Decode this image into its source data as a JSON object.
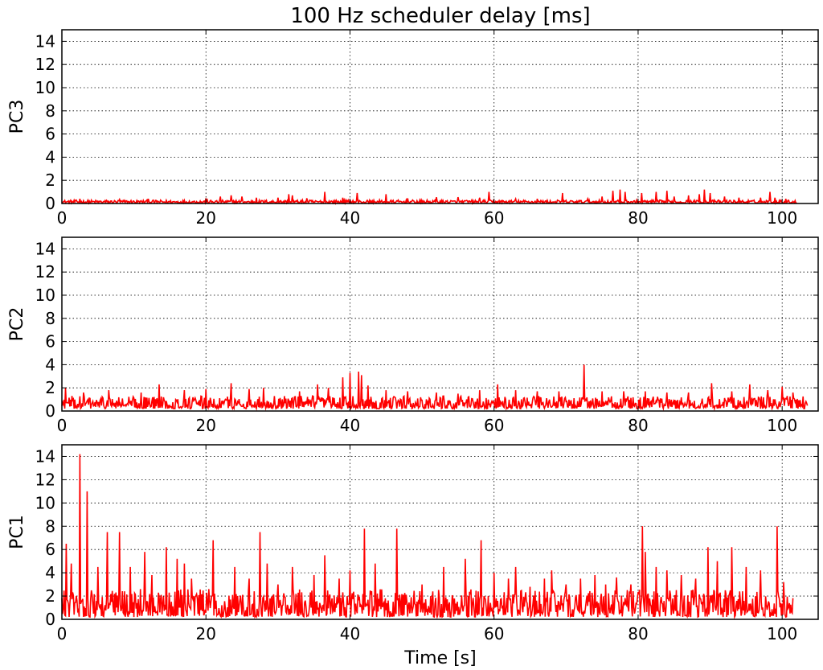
{
  "title": "100 Hz scheduler delay [ms]",
  "colors": {
    "series": "#ff0000",
    "grid": "#000000",
    "axes": "#000000",
    "background": "#ffffff"
  },
  "chart_data": [
    {
      "type": "line",
      "panel": "top",
      "ylabel": "PC3",
      "xlabel": "",
      "xlim": [
        0,
        105
      ],
      "ylim": [
        0,
        15
      ],
      "xticks": [
        0,
        20,
        40,
        60,
        80,
        100
      ],
      "yticks": [
        0,
        2,
        4,
        6,
        8,
        10,
        12,
        14
      ],
      "grid": true,
      "series": [
        {
          "x_end": 102,
          "baseline": [
            0.05,
            0.3
          ],
          "spikes": [
            [
              2.5,
              0.4
            ],
            [
              8,
              0.35
            ],
            [
              12,
              0.4
            ],
            [
              20,
              0.45
            ],
            [
              22,
              0.6
            ],
            [
              23.5,
              0.7
            ],
            [
              25,
              0.6
            ],
            [
              27,
              0.5
            ],
            [
              30,
              0.5
            ],
            [
              31.5,
              0.8
            ],
            [
              32,
              0.7
            ],
            [
              34,
              0.45
            ],
            [
              36.5,
              1.0
            ],
            [
              39,
              0.5
            ],
            [
              41,
              0.9
            ],
            [
              45,
              0.8
            ],
            [
              48,
              0.45
            ],
            [
              52,
              0.55
            ],
            [
              55,
              0.55
            ],
            [
              58,
              0.5
            ],
            [
              59.3,
              1.0
            ],
            [
              63,
              0.4
            ],
            [
              66,
              0.4
            ],
            [
              69.5,
              0.9
            ],
            [
              73,
              0.4
            ],
            [
              75,
              0.6
            ],
            [
              76.5,
              1.1
            ],
            [
              77.5,
              1.2
            ],
            [
              78.2,
              1.0
            ],
            [
              80.5,
              0.9
            ],
            [
              82.5,
              1.0
            ],
            [
              84,
              1.1
            ],
            [
              85,
              0.6
            ],
            [
              87,
              0.7
            ],
            [
              88.5,
              0.8
            ],
            [
              89.2,
              1.2
            ],
            [
              90,
              0.9
            ],
            [
              92,
              0.6
            ],
            [
              94,
              0.5
            ],
            [
              97,
              0.5
            ],
            [
              98.3,
              1.0
            ],
            [
              99,
              0.5
            ],
            [
              100.5,
              0.4
            ]
          ]
        }
      ]
    },
    {
      "type": "line",
      "panel": "middle",
      "ylabel": "PC2",
      "xlabel": "",
      "xlim": [
        0,
        105
      ],
      "ylim": [
        0,
        15
      ],
      "xticks": [
        0,
        20,
        40,
        60,
        80,
        100
      ],
      "yticks": [
        0,
        2,
        4,
        6,
        8,
        10,
        12,
        14
      ],
      "grid": true,
      "series": [
        {
          "x_end": 103.5,
          "baseline": [
            0.2,
            1.3
          ],
          "spikes": [
            [
              0.5,
              2.0
            ],
            [
              3,
              1.6
            ],
            [
              6.5,
              1.8
            ],
            [
              11,
              1.6
            ],
            [
              13.5,
              2.3
            ],
            [
              17,
              1.8
            ],
            [
              20,
              1.9
            ],
            [
              23.5,
              2.4
            ],
            [
              26,
              1.9
            ],
            [
              28,
              2.0
            ],
            [
              33,
              1.7
            ],
            [
              35.5,
              2.3
            ],
            [
              37,
              2.0
            ],
            [
              39,
              2.9
            ],
            [
              40,
              3.3
            ],
            [
              41.2,
              3.4
            ],
            [
              41.6,
              3.1
            ],
            [
              42.5,
              2.2
            ],
            [
              45,
              1.8
            ],
            [
              48,
              1.7
            ],
            [
              52,
              1.6
            ],
            [
              55,
              1.5
            ],
            [
              58,
              1.8
            ],
            [
              60.5,
              2.3
            ],
            [
              63,
              1.8
            ],
            [
              66,
              1.7
            ],
            [
              69,
              1.7
            ],
            [
              72.5,
              4.0
            ],
            [
              75,
              1.7
            ],
            [
              78,
              1.7
            ],
            [
              81,
              1.7
            ],
            [
              84,
              1.6
            ],
            [
              87,
              1.6
            ],
            [
              90.2,
              2.4
            ],
            [
              93,
              1.7
            ],
            [
              95.5,
              2.3
            ],
            [
              98,
              1.8
            ],
            [
              100,
              2.1
            ],
            [
              101.5,
              1.6
            ]
          ]
        }
      ]
    },
    {
      "type": "line",
      "panel": "bottom",
      "ylabel": "PC1",
      "xlabel": "Time [s]",
      "xlim": [
        0,
        105
      ],
      "ylim": [
        0,
        15
      ],
      "xticks": [
        0,
        20,
        40,
        60,
        80,
        100
      ],
      "yticks": [
        0,
        2,
        4,
        6,
        8,
        10,
        12,
        14
      ],
      "grid": true,
      "series": [
        {
          "x_end": 101.5,
          "baseline": [
            0.2,
            2.6
          ],
          "spikes": [
            [
              0.6,
              6.5
            ],
            [
              1.3,
              4.8
            ],
            [
              2.5,
              14.2
            ],
            [
              3.5,
              11.0
            ],
            [
              5,
              4.5
            ],
            [
              6.3,
              7.5
            ],
            [
              8,
              7.5
            ],
            [
              9.5,
              4.5
            ],
            [
              11.5,
              5.8
            ],
            [
              12.5,
              3.8
            ],
            [
              14.5,
              6.2
            ],
            [
              16,
              5.2
            ],
            [
              17,
              4.8
            ],
            [
              18,
              3.5
            ],
            [
              21,
              6.8
            ],
            [
              24,
              4.5
            ],
            [
              26,
              3.5
            ],
            [
              27.5,
              7.5
            ],
            [
              28.5,
              4.8
            ],
            [
              30,
              3.0
            ],
            [
              32,
              4.5
            ],
            [
              35,
              3.8
            ],
            [
              36.5,
              5.5
            ],
            [
              38.5,
              3.5
            ],
            [
              40,
              4.2
            ],
            [
              42,
              7.8
            ],
            [
              43.5,
              4.8
            ],
            [
              46.5,
              7.8
            ],
            [
              50,
              3.0
            ],
            [
              53,
              4.5
            ],
            [
              56,
              5.2
            ],
            [
              58.2,
              6.8
            ],
            [
              60,
              4.0
            ],
            [
              62,
              3.5
            ],
            [
              63,
              4.5
            ],
            [
              65,
              2.8
            ],
            [
              67,
              3.5
            ],
            [
              68,
              4.2
            ],
            [
              70,
              3.0
            ],
            [
              72,
              3.5
            ],
            [
              74,
              3.8
            ],
            [
              75.5,
              3.0
            ],
            [
              77,
              3.6
            ],
            [
              79,
              3.0
            ],
            [
              80.6,
              8.0
            ],
            [
              81,
              5.8
            ],
            [
              82.5,
              4.5
            ],
            [
              84,
              4.2
            ],
            [
              86,
              3.8
            ],
            [
              88,
              3.5
            ],
            [
              89.7,
              6.2
            ],
            [
              91,
              5.0
            ],
            [
              93,
              6.2
            ],
            [
              95,
              4.5
            ],
            [
              97,
              4.2
            ],
            [
              99.3,
              8.0
            ],
            [
              100.2,
              3.2
            ]
          ]
        }
      ]
    }
  ]
}
